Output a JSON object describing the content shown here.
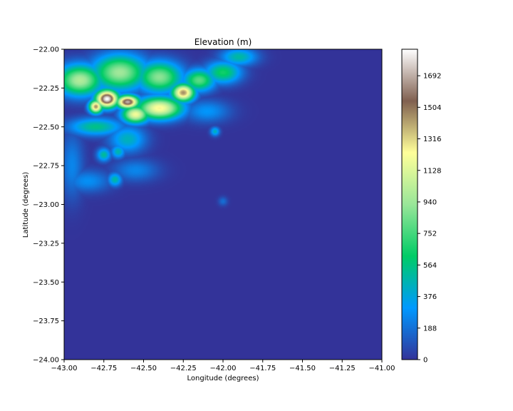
{
  "chart_data": {
    "type": "heatmap",
    "title": "Elevation (m)",
    "xlabel": "Longitude (degrees)",
    "ylabel": "Latitude (degrees)",
    "xlim": [
      -43.0,
      -41.0
    ],
    "ylim": [
      -24.0,
      -22.0
    ],
    "x_ticks": [
      -43.0,
      -42.75,
      -42.5,
      -42.25,
      -42.0,
      -41.75,
      -41.5,
      -41.25,
      -41.0
    ],
    "x_tick_labels": [
      "−43.00",
      "−42.75",
      "−42.50",
      "−42.25",
      "−42.00",
      "−41.75",
      "−41.50",
      "−41.25",
      "−41.00"
    ],
    "y_ticks": [
      -22.0,
      -22.25,
      -22.5,
      -22.75,
      -23.0,
      -23.25,
      -23.5,
      -23.75,
      -24.0
    ],
    "y_tick_labels": [
      "−22.00",
      "−22.25",
      "−22.50",
      "−22.75",
      "−23.00",
      "−23.25",
      "−23.50",
      "−23.75",
      "−24.00"
    ],
    "colorbar": {
      "colormap": "terrain",
      "range": [
        0,
        1850
      ],
      "ticks": [
        0,
        188,
        376,
        564,
        752,
        940,
        1128,
        1316,
        1504,
        1692
      ],
      "tick_labels": [
        "0",
        "188",
        "376",
        "564",
        "752",
        "940",
        "1128",
        "1316",
        "1504",
        "1692"
      ],
      "colors": [
        "#333399",
        "#0099ff",
        "#00cc66",
        "#99e699",
        "#ffff99",
        "#806050",
        "#ffffff"
      ]
    },
    "grid": false,
    "features": [
      {
        "lon": -42.73,
        "lat": -22.32,
        "elevation": 1850,
        "sx": 0.05,
        "sy": 0.04
      },
      {
        "lon": -42.6,
        "lat": -22.34,
        "elevation": 1700,
        "sx": 0.05,
        "sy": 0.03
      },
      {
        "lon": -42.8,
        "lat": -22.37,
        "elevation": 1450,
        "sx": 0.03,
        "sy": 0.03
      },
      {
        "lon": -42.25,
        "lat": -22.28,
        "elevation": 1450,
        "sx": 0.05,
        "sy": 0.04
      },
      {
        "lon": -42.4,
        "lat": -22.38,
        "elevation": 1250,
        "sx": 0.1,
        "sy": 0.05
      },
      {
        "lon": -42.55,
        "lat": -22.42,
        "elevation": 1200,
        "sx": 0.06,
        "sy": 0.04
      },
      {
        "lon": -42.9,
        "lat": -22.2,
        "elevation": 1000,
        "sx": 0.1,
        "sy": 0.07
      },
      {
        "lon": -42.65,
        "lat": -22.15,
        "elevation": 950,
        "sx": 0.12,
        "sy": 0.08
      },
      {
        "lon": -42.4,
        "lat": -22.18,
        "elevation": 900,
        "sx": 0.1,
        "sy": 0.07
      },
      {
        "lon": -42.15,
        "lat": -22.2,
        "elevation": 800,
        "sx": 0.07,
        "sy": 0.05
      },
      {
        "lon": -42.0,
        "lat": -22.15,
        "elevation": 650,
        "sx": 0.08,
        "sy": 0.05
      },
      {
        "lon": -41.9,
        "lat": -22.05,
        "elevation": 500,
        "sx": 0.08,
        "sy": 0.04
      },
      {
        "lon": -42.8,
        "lat": -22.5,
        "elevation": 550,
        "sx": 0.12,
        "sy": 0.04
      },
      {
        "lon": -42.6,
        "lat": -22.58,
        "elevation": 450,
        "sx": 0.08,
        "sy": 0.06
      },
      {
        "lon": -42.75,
        "lat": -22.68,
        "elevation": 520,
        "sx": 0.03,
        "sy": 0.03
      },
      {
        "lon": -42.66,
        "lat": -22.66,
        "elevation": 480,
        "sx": 0.03,
        "sy": 0.03
      },
      {
        "lon": -42.68,
        "lat": -22.84,
        "elevation": 500,
        "sx": 0.03,
        "sy": 0.03
      },
      {
        "lon": -42.85,
        "lat": -22.85,
        "elevation": 280,
        "sx": 0.1,
        "sy": 0.05
      },
      {
        "lon": -42.55,
        "lat": -22.78,
        "elevation": 250,
        "sx": 0.1,
        "sy": 0.05
      },
      {
        "lon": -42.95,
        "lat": -22.75,
        "elevation": 250,
        "sx": 0.05,
        "sy": 0.15
      },
      {
        "lon": -42.05,
        "lat": -22.53,
        "elevation": 450,
        "sx": 0.02,
        "sy": 0.02
      },
      {
        "lon": -42.0,
        "lat": -22.98,
        "elevation": 180,
        "sx": 0.02,
        "sy": 0.02
      },
      {
        "lon": -42.1,
        "lat": -22.4,
        "elevation": 300,
        "sx": 0.1,
        "sy": 0.05
      }
    ]
  }
}
